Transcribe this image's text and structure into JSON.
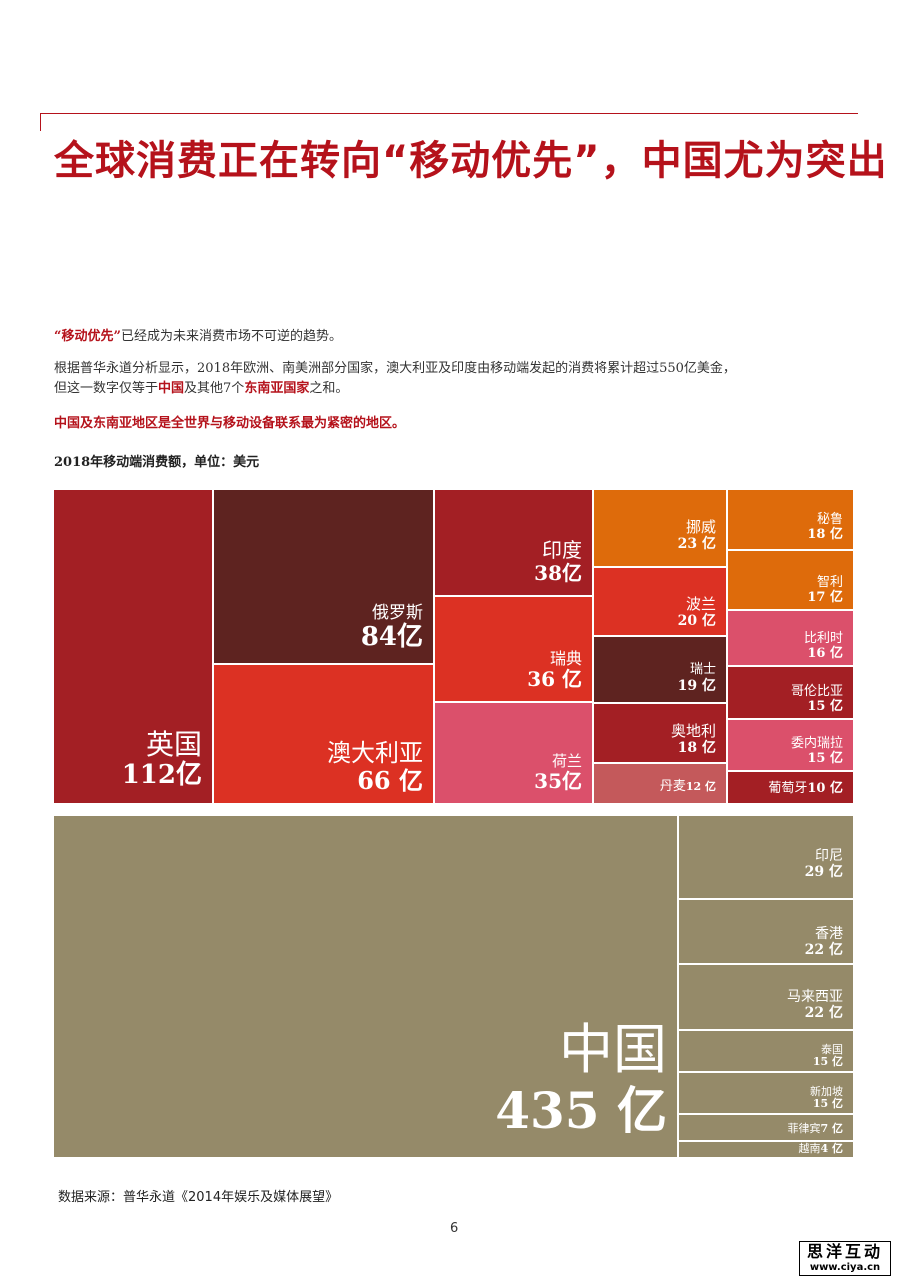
{
  "page": {
    "title": "全球消费正在转向“移动优先”，中国尤为突出",
    "intro": {
      "emphasis": "“移动优先”",
      "rest": "已经成为未来消费市场不可逆的趋势。"
    },
    "body": {
      "line1": "根据普华永道分析显示，2018年欧洲、南美洲部分国家，澳大利亚及印度由移动端发起的消费将累计超过550亿美金，",
      "line2_a": "但这一数字仅等于",
      "line2_b": "中国",
      "line2_c": "及其他7个",
      "line2_d": "东南亚国家",
      "line2_e": "之和。"
    },
    "highlight": "中国及东南亚地区是全世界与移动设备联系最为紧密的地区。",
    "chart_caption": "2018年移动端消费额，单位：美元",
    "source": "数据来源：普华永道《2014年娱乐及媒体展望》",
    "page_number": "6",
    "watermark": {
      "cn": "思洋互动",
      "url": "www.ciya.cn"
    }
  },
  "chart_data": {
    "type": "treemap",
    "unit": "亿",
    "groups": [
      {
        "items": [
          {
            "name": "英国",
            "value": 112,
            "label": "112亿",
            "color": "#a31f24"
          },
          {
            "name": "俄罗斯",
            "value": 84,
            "label": "84亿",
            "color": "#5e2320"
          },
          {
            "name": "澳大利亚",
            "value": 66,
            "label": "66 亿",
            "color": "#dc3123"
          },
          {
            "name": "印度",
            "value": 38,
            "label": "38亿",
            "color": "#a31f24"
          },
          {
            "name": "瑞典",
            "value": 36,
            "label": "36 亿",
            "color": "#dc3123"
          },
          {
            "name": "荷兰",
            "value": 35,
            "label": "35亿",
            "color": "#db506b"
          },
          {
            "name": "挪威",
            "value": 23,
            "label": "23 亿",
            "color": "#de6b0b"
          },
          {
            "name": "波兰",
            "value": 20,
            "label": "20 亿",
            "color": "#dc3123"
          },
          {
            "name": "瑞士",
            "value": 19,
            "label": "19 亿",
            "color": "#5e2320"
          },
          {
            "name": "奥地利",
            "value": 18,
            "label": "18 亿",
            "color": "#a31f24"
          },
          {
            "name": "丹麦",
            "value": 12,
            "label": "12 亿",
            "color": "#c4595b"
          },
          {
            "name": "秘鲁",
            "value": 18,
            "label": "18 亿",
            "color": "#de6b0b"
          },
          {
            "name": "智利",
            "value": 17,
            "label": "17 亿",
            "color": "#de6b0b"
          },
          {
            "name": "比利时",
            "value": 16,
            "label": "16 亿",
            "color": "#db506b"
          },
          {
            "name": "哥伦比亚",
            "value": 15,
            "label": "15 亿",
            "color": "#a31f24"
          },
          {
            "name": "委内瑞拉",
            "value": 15,
            "label": "15 亿",
            "color": "#db506b"
          },
          {
            "name": "葡萄牙",
            "value": 10,
            "label": "10 亿",
            "color": "#a31f24"
          }
        ]
      },
      {
        "items": [
          {
            "name": "中国",
            "value": 435,
            "label": "435 亿",
            "color": "#958a69"
          },
          {
            "name": "印尼",
            "value": 29,
            "label": "29 亿",
            "color": "#958a69"
          },
          {
            "name": "香港",
            "value": 22,
            "label": "22 亿",
            "color": "#958a69"
          },
          {
            "name": "马来西亚",
            "value": 22,
            "label": "22 亿",
            "color": "#958a69"
          },
          {
            "name": "泰国",
            "value": 15,
            "label": "15 亿",
            "color": "#958a69"
          },
          {
            "name": "新加坡",
            "value": 15,
            "label": "15 亿",
            "color": "#958a69"
          },
          {
            "name": "菲律宾",
            "value": 7,
            "label": "7 亿",
            "color": "#958a69"
          },
          {
            "name": "越南",
            "value": 4,
            "label": "4 亿",
            "color": "#958a69"
          }
        ]
      }
    ]
  }
}
